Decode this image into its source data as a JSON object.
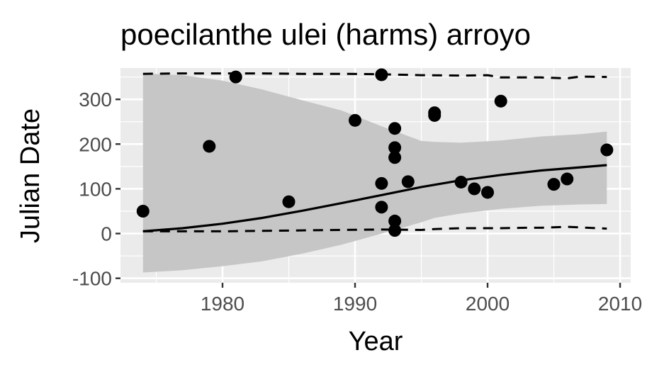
{
  "chart_data": {
    "type": "scatter",
    "title": "poecilanthe ulei (harms) arroyo",
    "xlabel": "Year",
    "ylabel": "Julian Date",
    "xlim": [
      1972.3,
      2010.8
    ],
    "ylim": [
      -110,
      370
    ],
    "x_ticks": [
      1980,
      1990,
      2000,
      2010
    ],
    "y_ticks": [
      -100,
      0,
      100,
      200,
      300
    ],
    "x_tick_labels": [
      "1980",
      "1990",
      "2000",
      "2010"
    ],
    "y_tick_labels": [
      "-100",
      "0",
      "100",
      "200",
      "300"
    ],
    "grid": true,
    "legend": "none",
    "points": [
      {
        "x": 1974,
        "y": 50
      },
      {
        "x": 1979,
        "y": 195
      },
      {
        "x": 1981,
        "y": 350
      },
      {
        "x": 1985,
        "y": 71
      },
      {
        "x": 1990,
        "y": 253
      },
      {
        "x": 1992,
        "y": 355
      },
      {
        "x": 1992,
        "y": 112
      },
      {
        "x": 1992,
        "y": 59
      },
      {
        "x": 1993,
        "y": 235
      },
      {
        "x": 1993,
        "y": 192
      },
      {
        "x": 1993,
        "y": 170
      },
      {
        "x": 1993,
        "y": 28
      },
      {
        "x": 1993,
        "y": 7
      },
      {
        "x": 1994,
        "y": 116
      },
      {
        "x": 1996,
        "y": 270
      },
      {
        "x": 1996,
        "y": 264
      },
      {
        "x": 1998,
        "y": 115
      },
      {
        "x": 1999,
        "y": 100
      },
      {
        "x": 2000,
        "y": 92
      },
      {
        "x": 2001,
        "y": 296
      },
      {
        "x": 2005,
        "y": 110
      },
      {
        "x": 2006,
        "y": 122
      },
      {
        "x": 2009,
        "y": 187
      }
    ],
    "fit_line": {
      "x": [
        1974,
        1977,
        1980,
        1983,
        1986,
        1989,
        1992,
        1995,
        1998,
        2001,
        2004,
        2007,
        2009
      ],
      "y": [
        5,
        12,
        22,
        35,
        51,
        68,
        86,
        104,
        119,
        131,
        141,
        148,
        153
      ]
    },
    "confidence_band": {
      "x": [
        1974,
        1977,
        1980,
        1983,
        1986,
        1989,
        1992,
        1995,
        1996,
        1998,
        2001,
        2004,
        2007,
        2009
      ],
      "lower": [
        -87,
        -82,
        -73,
        -62,
        -45,
        -25,
        0,
        25,
        35,
        45,
        55,
        62,
        65,
        66
      ],
      "upper": [
        358,
        354,
        342,
        322,
        298,
        275,
        240,
        207,
        205,
        203,
        208,
        217,
        222,
        228
      ]
    },
    "upper_bound_line": {
      "x": [
        1974,
        1977,
        1980,
        1983,
        1986,
        1989,
        1992,
        1995,
        1998,
        2000,
        2001,
        2004,
        2006,
        2007,
        2009
      ],
      "y": [
        357,
        358,
        358,
        358,
        357,
        357,
        356,
        354,
        353,
        354,
        349,
        349,
        347,
        351,
        350
      ]
    },
    "lower_bound_line": {
      "x": [
        1974,
        1977,
        1980,
        1983,
        1986,
        1989,
        1992,
        1995,
        1996,
        1998,
        2001,
        2003,
        2004,
        2006,
        2009
      ],
      "y": [
        5,
        5,
        5,
        6,
        7,
        8,
        9,
        8,
        10,
        12,
        12,
        13,
        13,
        15,
        11
      ]
    }
  }
}
